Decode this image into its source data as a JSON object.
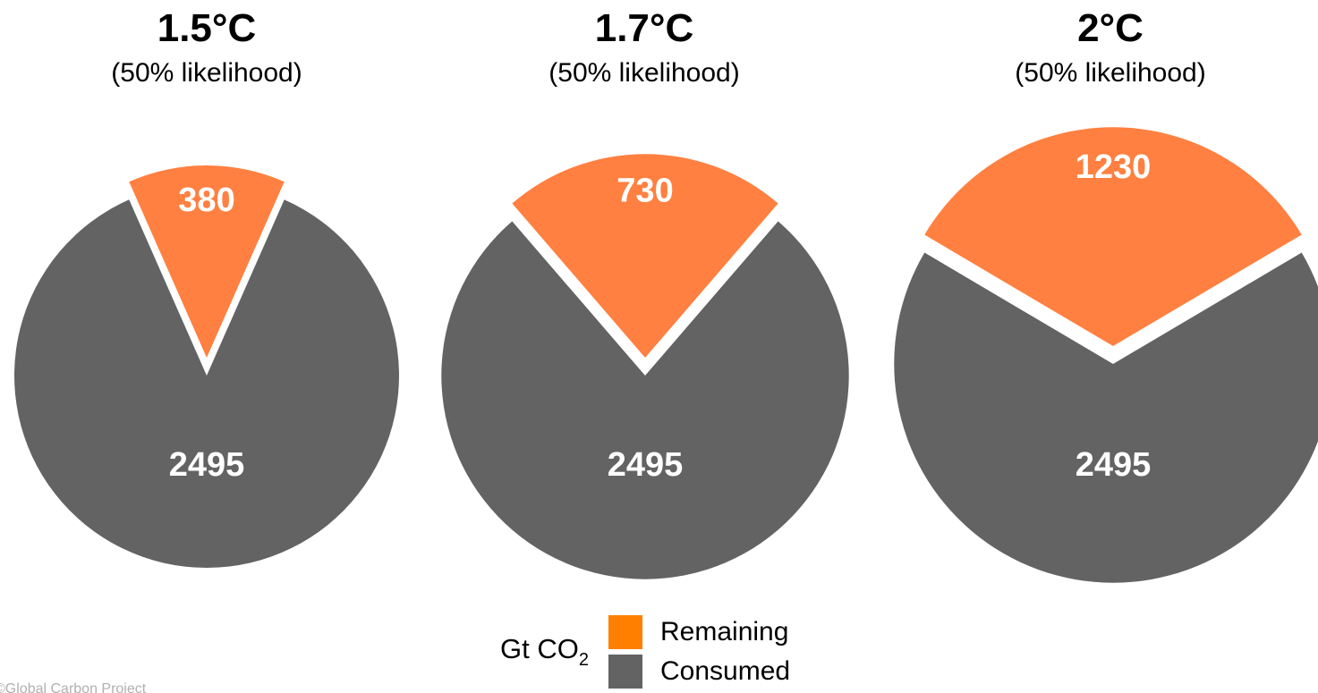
{
  "chart_data": [
    {
      "type": "pie",
      "title": "1.5°C",
      "subtitle": "(50% likelihood)",
      "slices": [
        {
          "name": "Remaining",
          "value": 380,
          "label": "380"
        },
        {
          "name": "Consumed",
          "value": 2495,
          "label": "2495"
        }
      ]
    },
    {
      "type": "pie",
      "title": "1.7°C",
      "subtitle": "(50% likelihood)",
      "slices": [
        {
          "name": "Remaining",
          "value": 730,
          "label": "730"
        },
        {
          "name": "Consumed",
          "value": 2495,
          "label": "2495"
        }
      ]
    },
    {
      "type": "pie",
      "title": "2°C",
      "subtitle": "(50% likelihood)",
      "slices": [
        {
          "name": "Remaining",
          "value": 1230,
          "label": "1230"
        },
        {
          "name": "Consumed",
          "value": 2495,
          "label": "2495"
        }
      ]
    }
  ],
  "legend": {
    "unit_prefix": "Gt CO",
    "unit_subscript": "2",
    "items": [
      {
        "label": "Remaining",
        "color": "#ff8040"
      },
      {
        "label": "Consumed",
        "color": "#636363"
      }
    ]
  },
  "colors": {
    "remaining_slice": "#ff8040",
    "remaining_swatch": "#ff8000",
    "consumed": "#636363",
    "slice_label": "#ffffff"
  },
  "watermark": "©Global Carbon Project"
}
